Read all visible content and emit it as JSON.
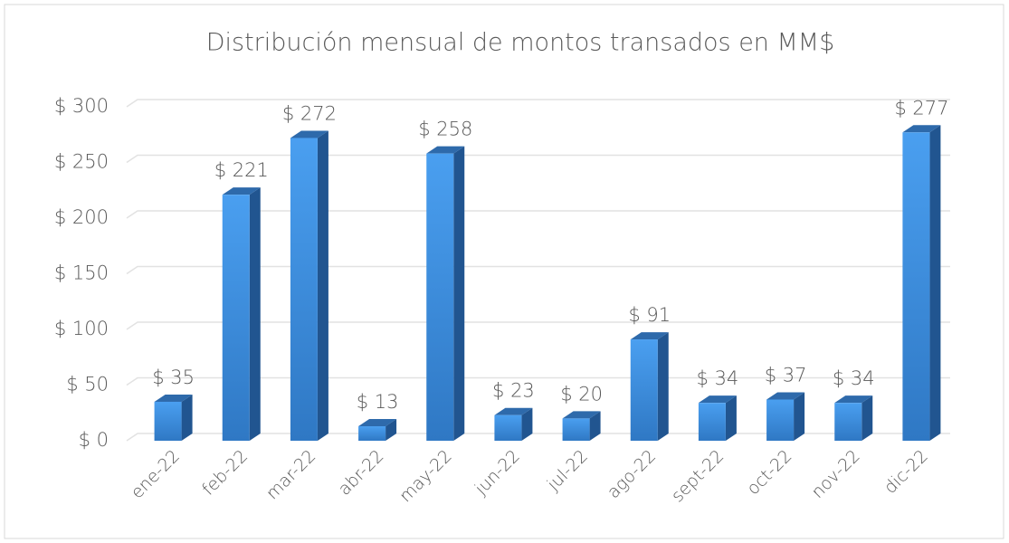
{
  "chart_data": {
    "type": "bar3d",
    "title": "Distribución mensual de montos transados en MM$",
    "categories": [
      "ene-22",
      "feb-22",
      "mar-22",
      "abr-22",
      "may-22",
      "jun-22",
      "jul-22",
      "ago-22",
      "sept-22",
      "oct-22",
      "nov-22",
      "dic-22"
    ],
    "values": [
      35,
      221,
      272,
      13,
      258,
      23,
      20,
      91,
      34,
      37,
      34,
      277
    ],
    "value_labels": [
      "$ 35",
      "$ 221",
      "$ 272",
      "$ 13",
      "$ 258",
      "$ 23",
      "$ 20",
      "$ 91",
      "$ 34",
      "$ 37",
      "$ 34",
      "$ 277"
    ],
    "color": "#3d8ad8",
    "ylim": [
      0,
      300
    ],
    "yticks": [
      {
        "value": 0,
        "label": "$ 0"
      },
      {
        "value": 50,
        "label": "$ 50"
      },
      {
        "value": 100,
        "label": "$ 100"
      },
      {
        "value": 150,
        "label": "$ 150"
      },
      {
        "value": 200,
        "label": "$ 200"
      },
      {
        "value": 250,
        "label": "$ 250"
      },
      {
        "value": 300,
        "label": "$ 300"
      }
    ],
    "grid": true
  }
}
